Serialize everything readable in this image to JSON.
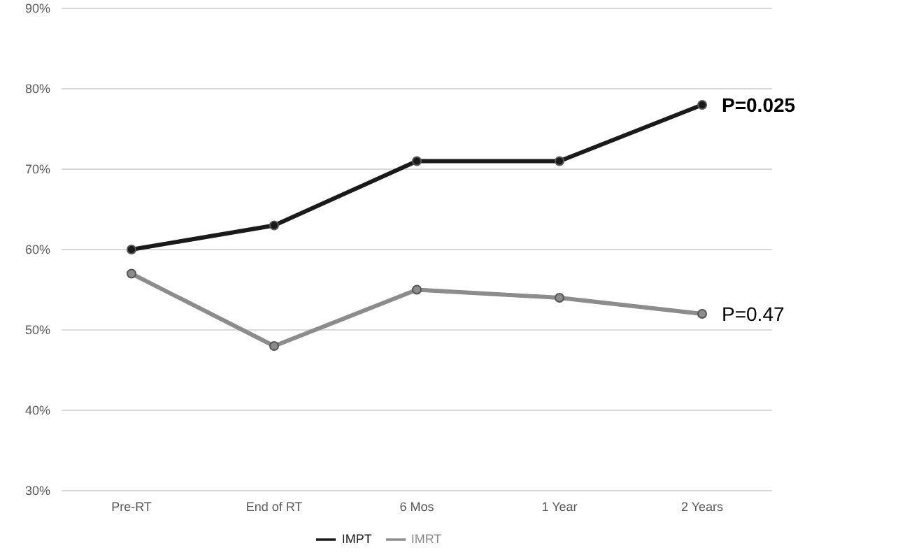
{
  "chart_data": {
    "type": "line",
    "categories": [
      "Pre-RT",
      "End of RT",
      "6 Mos",
      "1 Year",
      "2 Years"
    ],
    "series": [
      {
        "name": "IMPT",
        "color": "#1a1a1a",
        "values": [
          60,
          63,
          71,
          71,
          78
        ]
      },
      {
        "name": "IMRT",
        "color": "#8c8c8c",
        "values": [
          57,
          48,
          55,
          54,
          52
        ]
      }
    ],
    "ylim": [
      30,
      90
    ],
    "yticks": [
      {
        "value": 30,
        "label": "30%"
      },
      {
        "value": 40,
        "label": "40%"
      },
      {
        "value": 50,
        "label": "50%"
      },
      {
        "value": 60,
        "label": "60%"
      },
      {
        "value": 70,
        "label": "70%"
      },
      {
        "value": 80,
        "label": "80%"
      },
      {
        "value": 90,
        "label": "90%"
      }
    ],
    "grid": "y",
    "legend": "bottom",
    "marker": "circle",
    "line_style": "solid",
    "annotations": [
      {
        "text": "P=0.025",
        "x": "2 Years",
        "y": 78
      },
      {
        "text": "P=0.47",
        "x": "2 Years",
        "y": 52
      }
    ]
  }
}
